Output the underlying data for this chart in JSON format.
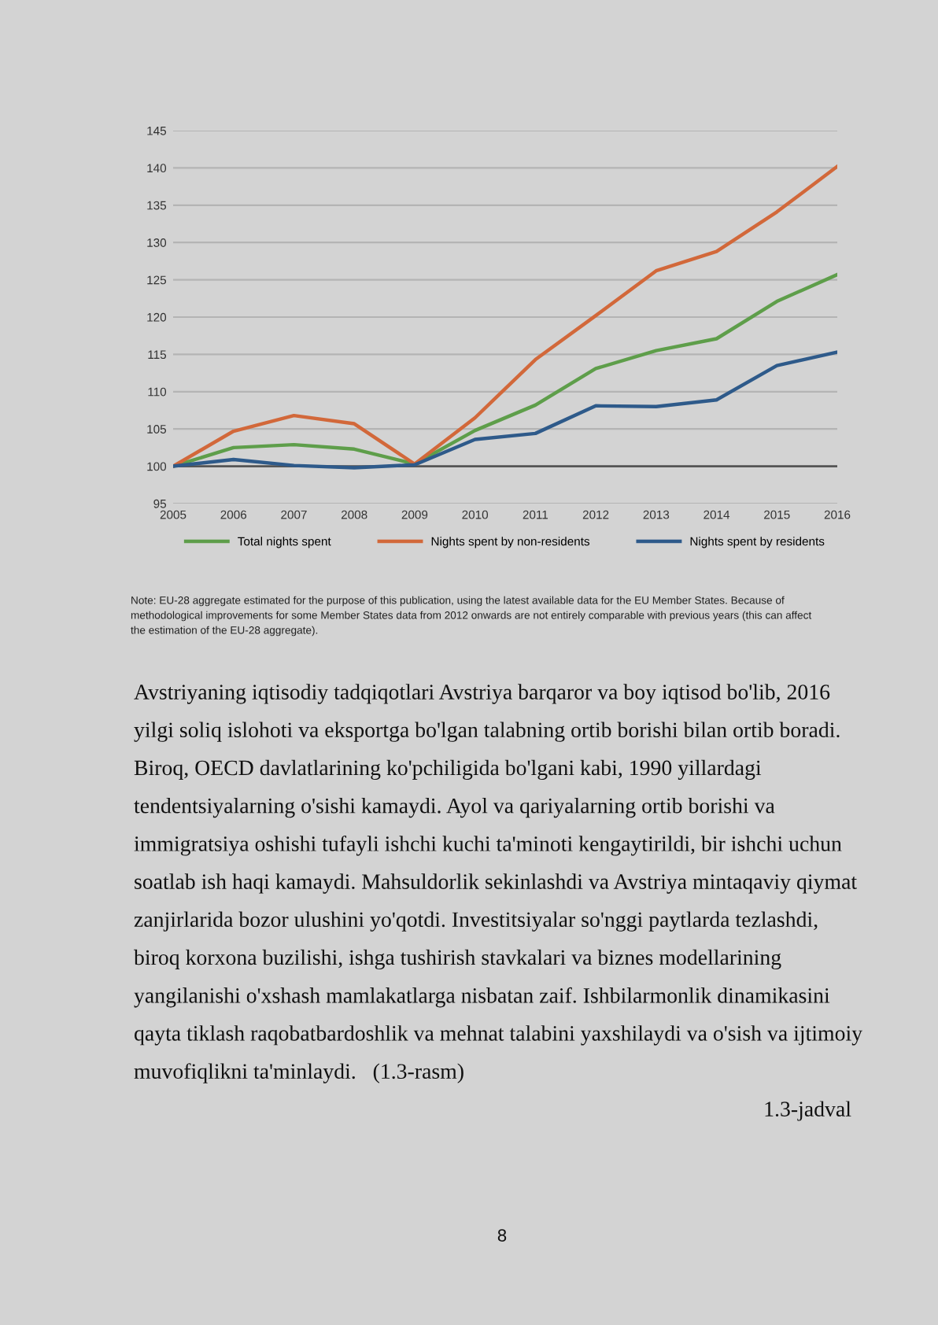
{
  "chart_data": {
    "type": "line",
    "x": [
      2005,
      2006,
      2007,
      2008,
      2009,
      2010,
      2011,
      2012,
      2013,
      2014,
      2015,
      2016
    ],
    "series": [
      {
        "name": "Total nights spent",
        "color": "#5e9e4a",
        "values": [
          100,
          102.5,
          102.9,
          102.3,
          100.3,
          104.8,
          108.2,
          113.1,
          115.5,
          117.1,
          122.1,
          125.7
        ]
      },
      {
        "name": "Nights spent by non-residents",
        "color": "#d2683a",
        "values": [
          100,
          104.7,
          106.8,
          105.7,
          100.3,
          106.5,
          114.3,
          120.2,
          126.2,
          128.8,
          134.1,
          140.2
        ]
      },
      {
        "name": "Nights spent by residents",
        "color": "#2e5a8a",
        "values": [
          100,
          100.9,
          100.1,
          99.8,
          100.2,
          103.6,
          104.4,
          108.1,
          108.0,
          108.9,
          113.5,
          115.3
        ]
      }
    ],
    "xlim": [
      2005,
      2016
    ],
    "xticks": [
      2005,
      2006,
      2007,
      2008,
      2009,
      2010,
      2011,
      2012,
      2013,
      2014,
      2015,
      2016
    ],
    "ylim": [
      95,
      145
    ],
    "yticks": [
      95,
      100,
      105,
      110,
      115,
      120,
      125,
      130,
      135,
      140,
      145
    ],
    "grid": "y",
    "legend": "bottom",
    "marker": "none",
    "line_style": "solid",
    "ref_lines": [
      {
        "axis": "y",
        "value": 100,
        "color": "#555555"
      }
    ],
    "annotations": [
      "Note: EU-28 aggregate estimated for the purpose of this publication, using the latest available data for the EU Member States. Because of",
      "methodological improvements for some Member States data from 2012 onwards are not entirely comparable with previous years (this can affect",
      "the estimation of the EU-28 aggregate).",
      "Avstriyaning iqtisodiy tadqiqotlari Avstriya barqaror va boy iqtisod bo'lib, 2016",
      "yilgi soliq islohoti va eksportga bo'lgan talabning ortib borishi bilan ortib boradi.",
      "Biroq, OECD davlatlarining ko'pchiligida bo'lgani kabi, 1990 yillardagi",
      "tendentsiyalarning o'sishi kamaydi. Ayol va qariyalarning ortib borishi va",
      "immigratsiya oshishi tufayli ishchi kuchi ta'minoti kengaytirildi, bir ishchi uchun",
      "soatlab ish haqi kamaydi. Mahsuldorlik sekinlashdi va Avstriya mintaqaviy qiymat",
      "zanjirlarida bozor ulushini yo'qotdi. Investitsiyalar so'nggi paytlarda tezlashdi,",
      "biroq korxona buzilishi, ishga tushirish stavkalari va biznes modellarining",
      "yangilanishi o'xshash mamlakatlarga nisbatan zaif. Ishbilarmonlik dinamikasini",
      "qayta tiklash raqobatbardoshlik va mehnat talabini yaxshilaydi va o'sish va ijtimoiy",
      "muvofiqlikni ta'minlaydi.   (1.3-rasm)",
      "1.3-jadval",
      "8"
    ]
  }
}
